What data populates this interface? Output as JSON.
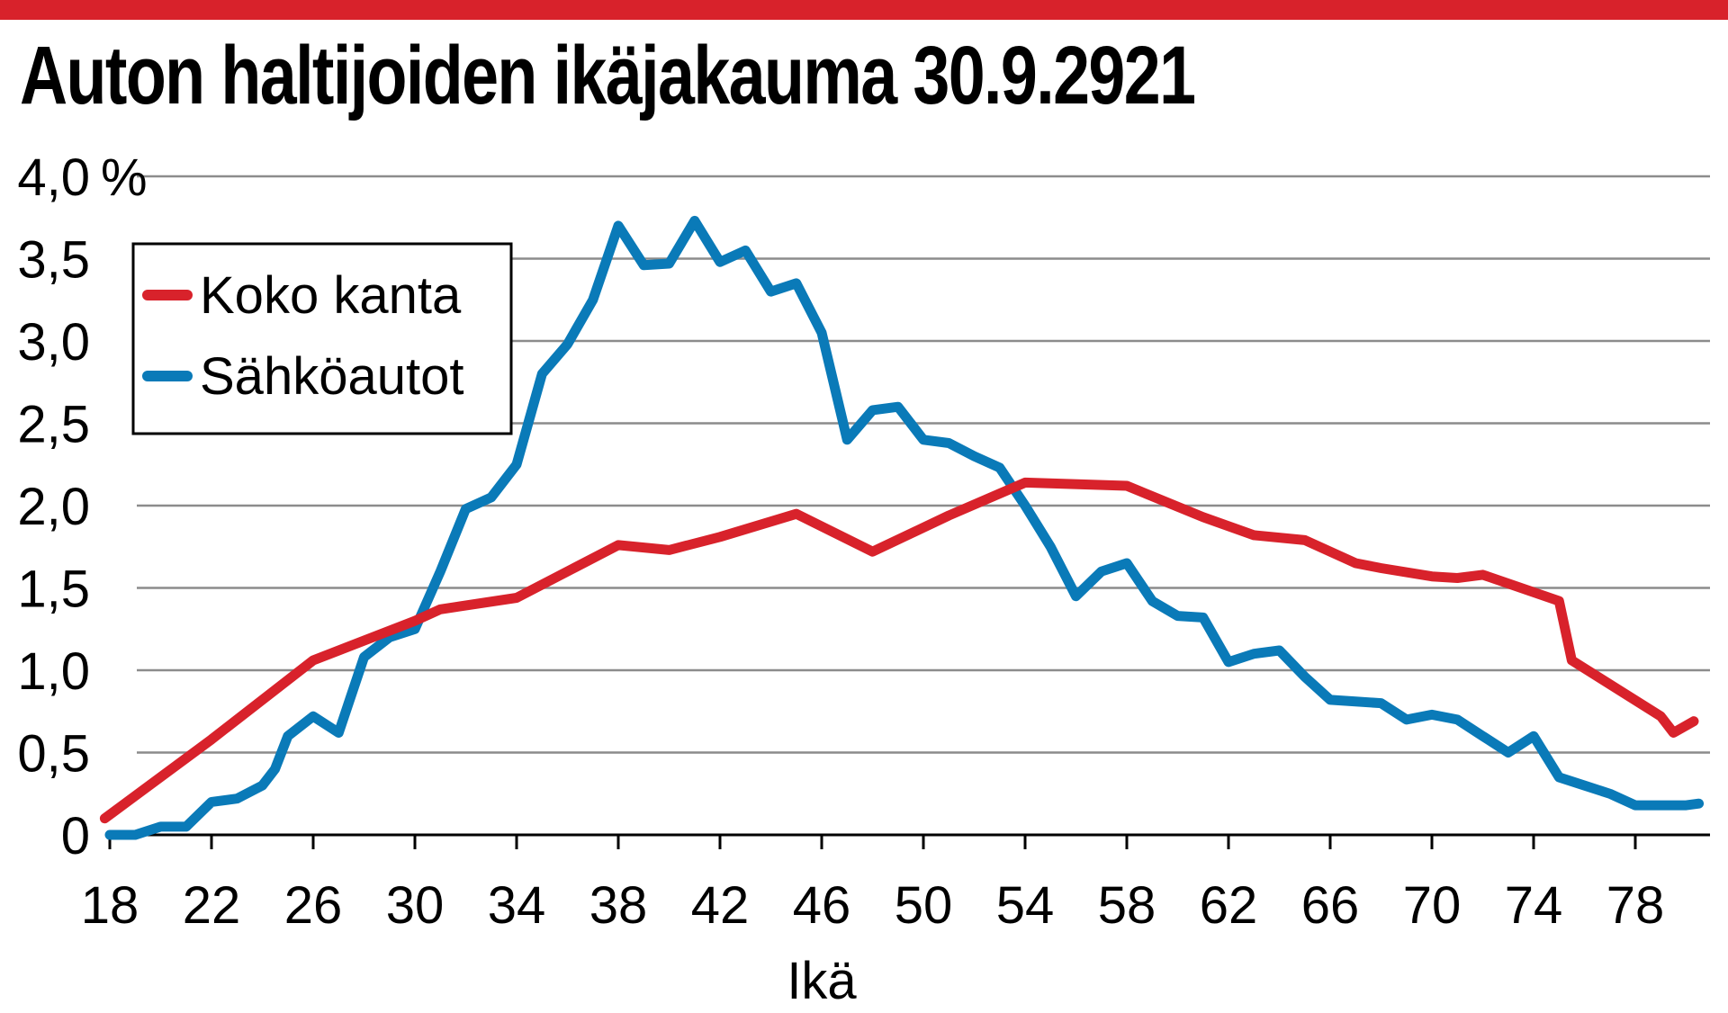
{
  "colors": {
    "accent": "#d8222b",
    "koko": "#d8222b",
    "sahko": "#0a7ab8",
    "grid": "#8c8c8c"
  },
  "title": "Auton haltijoiden ikäjakauma 30.9.2921",
  "chart_data": {
    "type": "line",
    "title": "Auton haltijoiden ikäjakauma 30.9.2921",
    "xlabel": "Ikä",
    "ylabel": "",
    "unit_label": "%",
    "xlim": [
      18,
      80.5
    ],
    "ylim": [
      0,
      4.0
    ],
    "grid": true,
    "legend_position": "top-left",
    "x_ticks": [
      18,
      22,
      26,
      30,
      34,
      38,
      42,
      46,
      50,
      54,
      58,
      62,
      66,
      70,
      74,
      78
    ],
    "x_tick_labels": [
      "18",
      "22",
      "26",
      "30",
      "34",
      "38",
      "42",
      "46",
      "50",
      "54",
      "58",
      "62",
      "66",
      "70",
      "74",
      "78"
    ],
    "y_ticks": [
      0,
      0.5,
      1.0,
      1.5,
      2.0,
      2.5,
      3.0,
      3.5,
      4.0
    ],
    "y_tick_labels": [
      "0",
      "0,5",
      "1,0",
      "1,5",
      "2,0",
      "2,5",
      "3,0",
      "3,5",
      "4,0"
    ],
    "series": [
      {
        "name": "Koko kanta",
        "color": "#d8222b",
        "x": [
          17.8,
          22,
          26,
          30,
          31,
          34,
          38,
          40,
          42,
          45,
          48,
          51,
          54,
          58,
          61,
          63,
          65,
          67,
          68,
          70,
          71,
          72,
          75,
          75.5,
          79,
          79.5,
          80.3
        ],
        "y": [
          0.1,
          0.58,
          1.06,
          1.3,
          1.37,
          1.44,
          1.76,
          1.73,
          1.81,
          1.95,
          1.72,
          1.94,
          2.14,
          2.12,
          1.93,
          1.82,
          1.79,
          1.65,
          1.62,
          1.57,
          1.56,
          1.58,
          1.42,
          1.06,
          0.72,
          0.62,
          0.69
        ]
      },
      {
        "name": "Sähköautot",
        "color": "#0a7ab8",
        "x": [
          18,
          19,
          20,
          21,
          22,
          23,
          24,
          24.5,
          25,
          26,
          27,
          28,
          29,
          30,
          31,
          32,
          33,
          34,
          35,
          36,
          37,
          38,
          39,
          40,
          41,
          42,
          43,
          44,
          45,
          46,
          47,
          48,
          49,
          50,
          51,
          52,
          53,
          54,
          55,
          56,
          57,
          58,
          59,
          60,
          61,
          62,
          63,
          64,
          65,
          66,
          67,
          68,
          69,
          70,
          71,
          72,
          73,
          74,
          75,
          76,
          77,
          78,
          79,
          80,
          80.5
        ],
        "y": [
          0,
          0,
          0.05,
          0.05,
          0.2,
          0.22,
          0.3,
          0.4,
          0.6,
          0.72,
          0.62,
          1.08,
          1.2,
          1.25,
          1.6,
          1.98,
          2.05,
          2.25,
          2.8,
          2.98,
          3.25,
          3.7,
          3.46,
          3.47,
          3.73,
          3.48,
          3.55,
          3.3,
          3.35,
          3.05,
          2.4,
          2.58,
          2.6,
          2.4,
          2.38,
          2.3,
          2.23,
          2.0,
          1.75,
          1.45,
          1.6,
          1.65,
          1.42,
          1.33,
          1.32,
          1.05,
          1.1,
          1.12,
          0.96,
          0.82,
          0.81,
          0.8,
          0.7,
          0.73,
          0.7,
          0.6,
          0.5,
          0.6,
          0.35,
          0.3,
          0.25,
          0.18,
          0.18,
          0.18,
          0.19
        ]
      }
    ]
  }
}
